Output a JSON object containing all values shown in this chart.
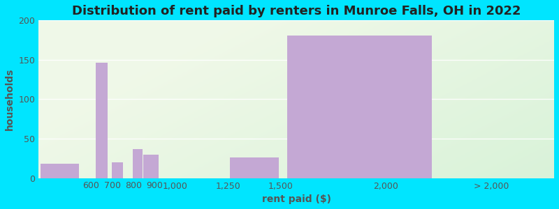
{
  "title": "Distribution of rent paid by renters in Munroe Falls, OH in 2022",
  "xlabel": "rent paid ($)",
  "ylabel": "households",
  "bar_color": "#c4a8d4",
  "ylim": [
    0,
    200
  ],
  "yticks": [
    0,
    50,
    100,
    150,
    200
  ],
  "background_outer": "#00e5ff",
  "title_fontsize": 13,
  "axis_label_fontsize": 10,
  "tick_fontsize": 9,
  "text_color": "#555555",
  "title_color": "#222222",
  "bar_positions": [
    450,
    650,
    725,
    820,
    885,
    1100,
    1375,
    1875
  ],
  "bar_widths": [
    200,
    60,
    60,
    50,
    80,
    250,
    250,
    750
  ],
  "bar_values": [
    18,
    146,
    20,
    37,
    30,
    0,
    26,
    181
  ],
  "xtick_positions": [
    600,
    700,
    800,
    900,
    1000,
    1250,
    1500,
    2000,
    2500
  ],
  "xtick_labels": [
    "600",
    "700",
    "800",
    "900",
    "1,000",
    "1,250",
    "1,500",
    "2,000",
    "> 2,000"
  ],
  "xlim": [
    350,
    2800
  ],
  "grid_color": "#ffffff",
  "grid_alpha": 0.9
}
